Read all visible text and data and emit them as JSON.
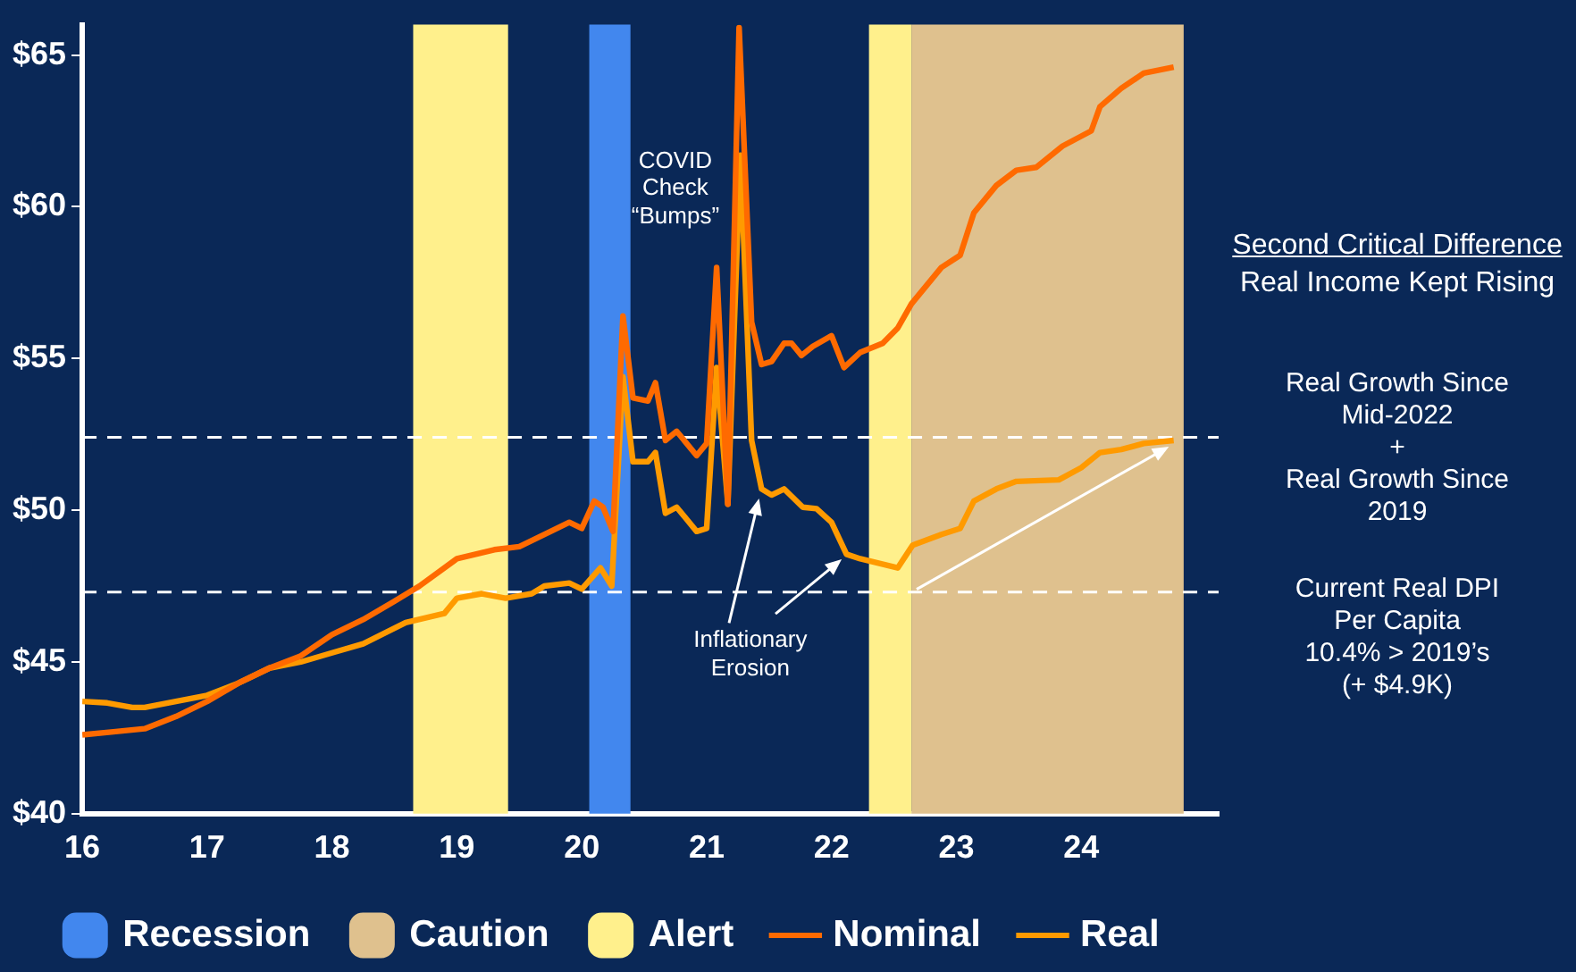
{
  "chart_data": {
    "type": "line",
    "title": "Second Critical Difference",
    "subtitle": "Real Income Kept Rising",
    "xlim": [
      16,
      25.1
    ],
    "xticks": [
      16,
      17,
      18,
      19,
      20,
      21,
      22,
      23,
      24
    ],
    "ylim": [
      40,
      66
    ],
    "yticks": [
      {
        "value": 40,
        "label": "$40"
      },
      {
        "value": 45,
        "label": "$45"
      },
      {
        "value": 50,
        "label": "$50"
      },
      {
        "value": 55,
        "label": "$55"
      },
      {
        "value": 60,
        "label": "$60"
      },
      {
        "value": 65,
        "label": "$65"
      }
    ],
    "series": [
      {
        "name": "Nominal",
        "color": "#ff6a00",
        "x": [
          16,
          16.25,
          16.5,
          16.75,
          17,
          17.25,
          17.5,
          17.75,
          18,
          18.25,
          18.5,
          18.7,
          19,
          19.3,
          19.5,
          19.75,
          19.9,
          20,
          20.1,
          20.17,
          20.25,
          20.33,
          20.41,
          20.53,
          20.59,
          20.67,
          20.76,
          20.92,
          21,
          21.08,
          21.17,
          21.26,
          21.36,
          21.44,
          21.52,
          21.62,
          21.68,
          21.76,
          21.85,
          22,
          22.1,
          22.23,
          22.41,
          22.53,
          22.64,
          22.88,
          23.03,
          23.14,
          23.32,
          23.48,
          23.64,
          23.85,
          24.08,
          24.15,
          24.32,
          24.5,
          24.74
        ],
        "values": [
          42.6,
          42.7,
          42.8,
          43.2,
          43.7,
          44.3,
          44.8,
          45.2,
          45.9,
          46.4,
          47,
          47.5,
          48.4,
          48.7,
          48.8,
          49.3,
          49.6,
          49.4,
          50.3,
          50.1,
          49.3,
          56.4,
          53.7,
          53.6,
          54.2,
          52.3,
          52.6,
          51.8,
          52.2,
          58,
          50.2,
          65.9,
          56.2,
          54.8,
          54.9,
          55.5,
          55.5,
          55.1,
          55.4,
          55.75,
          54.7,
          55.2,
          55.5,
          56,
          56.8,
          58,
          58.4,
          59.8,
          60.7,
          61.2,
          61.3,
          62,
          62.5,
          63.3,
          63.9,
          64.4,
          64.6
        ]
      },
      {
        "name": "Real",
        "color": "#ff9a00",
        "x": [
          16,
          16.2,
          16.4,
          16.5,
          16.75,
          17,
          17.25,
          17.5,
          17.75,
          18,
          18.25,
          18.59,
          18.9,
          19,
          19.2,
          19.39,
          19.6,
          19.7,
          19.9,
          20,
          20.15,
          20.24,
          20.33,
          20.41,
          20.53,
          20.59,
          20.67,
          20.76,
          20.92,
          21,
          21.08,
          21.17,
          21.27,
          21.36,
          21.44,
          21.52,
          21.62,
          21.77,
          21.88,
          22,
          22.12,
          22.23,
          22.53,
          22.65,
          22.88,
          23.03,
          23.14,
          23.32,
          23.48,
          23.82,
          24,
          24.15,
          24.32,
          24.5,
          24.74
        ],
        "values": [
          43.7,
          43.65,
          43.5,
          43.5,
          43.7,
          43.9,
          44.3,
          44.8,
          45,
          45.3,
          45.6,
          46.3,
          46.6,
          47.1,
          47.25,
          47.1,
          47.25,
          47.5,
          47.6,
          47.4,
          48.1,
          47.5,
          54.4,
          51.6,
          51.6,
          51.9,
          49.9,
          50.1,
          49.3,
          49.4,
          54.7,
          50.2,
          61.7,
          52.3,
          50.7,
          50.5,
          50.7,
          50.1,
          50.05,
          49.6,
          48.55,
          48.4,
          48.1,
          48.85,
          49.2,
          49.4,
          50.3,
          50.7,
          50.95,
          51,
          51.4,
          51.9,
          52,
          52.2,
          52.3
        ]
      }
    ],
    "bands": [
      {
        "axis": "x",
        "from": 20.06,
        "to": 20.39,
        "label": "Recession",
        "color": "#4287ee"
      },
      {
        "axis": "x",
        "from": 22.64,
        "to": 24.82,
        "label": "Caution",
        "color": "#dfc18e"
      },
      {
        "axis": "x",
        "from": 18.65,
        "to": 19.41,
        "label": "Alert",
        "color": "#fff08c"
      },
      {
        "axis": "x",
        "from": 22.3,
        "to": 22.64,
        "color": "#fff08c"
      }
    ],
    "ref_lines": [
      {
        "axis": "y",
        "value": 52.4,
        "color": "#ffffff",
        "line_style": "dashed"
      },
      {
        "axis": "y",
        "value": 47.3,
        "color": "#ffffff",
        "line_style": "dashed"
      }
    ],
    "annotations": [
      "COVID\nCheck\n“Bumps”",
      "Inflationary\nErosion",
      "Real Growth Since\nMid-2022\n+\nReal Growth Since\n2019",
      "Current Real DPI\nPer Capita\n10.4% > 2019’s\n(+ $4.9K)"
    ],
    "legend": "bottom",
    "grid": false,
    "marker": "none",
    "line_style": "solid"
  }
}
